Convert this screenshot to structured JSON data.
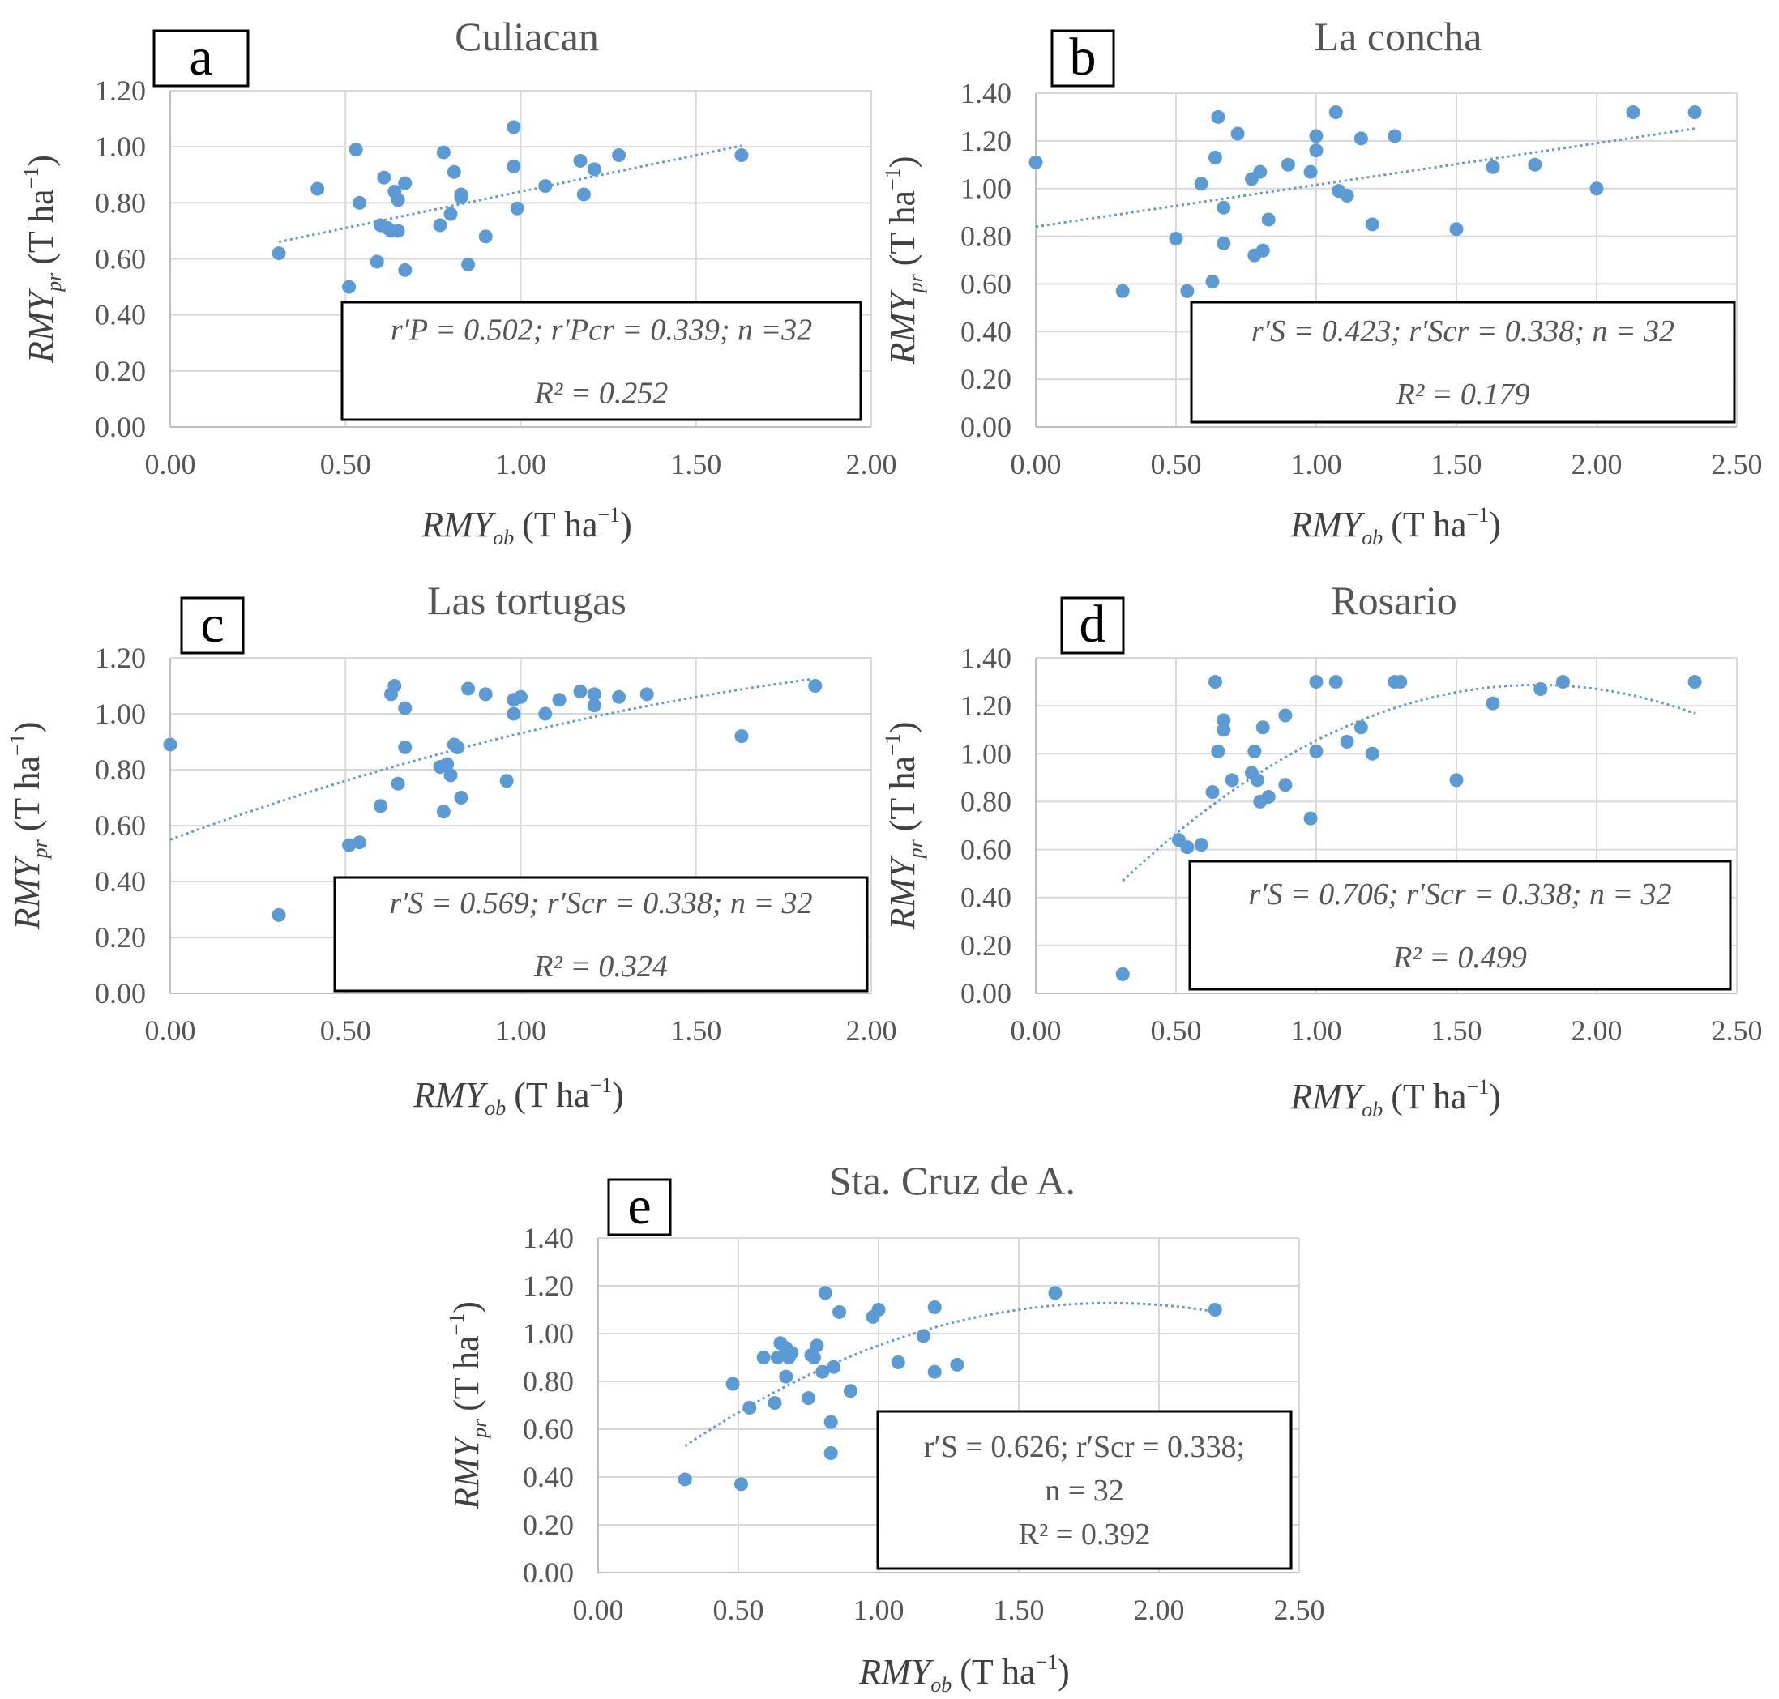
{
  "chart_data": [
    {
      "panel": "a",
      "type": "scatter",
      "title": "Culiacan",
      "xlabel": {
        "base": "RMY",
        "sub": "ob",
        "unit": "(T ha",
        "sup": "−1",
        "close": ")"
      },
      "ylabel": {
        "base": "RMY",
        "sub": "pr",
        "unit": "(T ha",
        "sup": "−1",
        "close": ")"
      },
      "xlim": [
        0,
        2
      ],
      "ylim": [
        0,
        1.2
      ],
      "xstep": 0.5,
      "ystep": 0.2,
      "xticks": [
        "0.00",
        "0.50",
        "1.00",
        "1.50",
        "2.00"
      ],
      "yticks": [
        "0.00",
        "0.20",
        "0.40",
        "0.60",
        "0.80",
        "1.00",
        "1.20"
      ],
      "trend": {
        "kind": "linear",
        "coef": [
          0.58,
          0.26
        ],
        "from": 0.31,
        "to": 1.63
      },
      "stats_line1": "r′P = 0.502; r′Pcr = 0.339; n =32",
      "stats_line2": "R² = 0.252",
      "stats_line3": "",
      "points": [
        [
          0.31,
          0.62
        ],
        [
          0.42,
          0.85
        ],
        [
          0.51,
          0.5
        ],
        [
          0.53,
          0.99
        ],
        [
          0.54,
          0.8
        ],
        [
          0.59,
          0.59
        ],
        [
          0.6,
          0.72
        ],
        [
          0.61,
          0.89
        ],
        [
          0.62,
          0.71
        ],
        [
          0.63,
          0.7
        ],
        [
          0.64,
          0.84
        ],
        [
          0.65,
          0.81
        ],
        [
          0.65,
          0.7
        ],
        [
          0.67,
          0.87
        ],
        [
          0.67,
          0.56
        ],
        [
          0.77,
          0.72
        ],
        [
          0.78,
          0.98
        ],
        [
          0.8,
          0.76
        ],
        [
          0.81,
          0.91
        ],
        [
          0.83,
          0.83
        ],
        [
          0.85,
          0.58
        ],
        [
          0.9,
          0.68
        ],
        [
          0.98,
          0.93
        ],
        [
          0.98,
          1.07
        ],
        [
          0.99,
          0.78
        ],
        [
          1.07,
          0.86
        ],
        [
          1.17,
          0.95
        ],
        [
          1.18,
          0.83
        ],
        [
          1.21,
          0.92
        ],
        [
          1.28,
          0.97
        ],
        [
          1.63,
          0.97
        ],
        [
          0.83,
          0.82
        ]
      ]
    },
    {
      "panel": "b",
      "type": "scatter",
      "title": "La concha",
      "xlabel": {
        "base": "RMY",
        "sub": "ob",
        "unit": "(T ha",
        "sup": "−1",
        "close": ")"
      },
      "ylabel": {
        "base": "RMY",
        "sub": "pr",
        "unit": "(T ha",
        "sup": "−1",
        "close": ")"
      },
      "xlim": [
        0,
        2.5
      ],
      "ylim": [
        0,
        1.4
      ],
      "xstep": 0.5,
      "ystep": 0.2,
      "xticks": [
        "0.00",
        "0.50",
        "1.00",
        "1.50",
        "2.00",
        "2.50"
      ],
      "yticks": [
        "0.00",
        "0.20",
        "0.40",
        "0.60",
        "0.80",
        "1.00",
        "1.20",
        "1.40"
      ],
      "trend": {
        "kind": "linear",
        "coef": [
          0.84,
          0.175
        ],
        "from": 0.0,
        "to": 2.35
      },
      "stats_line1": "r′S = 0.423; r′Scr = 0.338; n = 32",
      "stats_line2": "R² = 0.179",
      "stats_line3": "",
      "points": [
        [
          0.0,
          1.11
        ],
        [
          0.31,
          0.57
        ],
        [
          0.5,
          0.79
        ],
        [
          0.54,
          0.57
        ],
        [
          0.59,
          1.02
        ],
        [
          0.63,
          0.61
        ],
        [
          0.64,
          1.13
        ],
        [
          0.65,
          1.3
        ],
        [
          0.67,
          0.92
        ],
        [
          0.67,
          0.77
        ],
        [
          0.72,
          1.23
        ],
        [
          0.77,
          1.04
        ],
        [
          0.78,
          0.72
        ],
        [
          0.8,
          1.07
        ],
        [
          0.81,
          0.74
        ],
        [
          0.83,
          0.87
        ],
        [
          0.9,
          1.1
        ],
        [
          0.98,
          1.07
        ],
        [
          1.0,
          1.16
        ],
        [
          1.0,
          1.22
        ],
        [
          1.07,
          1.32
        ],
        [
          1.08,
          0.99
        ],
        [
          1.11,
          0.97
        ],
        [
          1.16,
          1.21
        ],
        [
          1.2,
          0.85
        ],
        [
          1.28,
          1.22
        ],
        [
          1.5,
          0.83
        ],
        [
          1.63,
          1.09
        ],
        [
          1.78,
          1.1
        ],
        [
          2.0,
          1.0
        ],
        [
          2.13,
          1.32
        ],
        [
          2.35,
          1.32
        ]
      ]
    },
    {
      "panel": "c",
      "type": "scatter",
      "title": "Las tortugas",
      "xlabel": {
        "base": "RMY",
        "sub": "ob",
        "unit": "(T ha",
        "sup": "−1",
        "close": ")"
      },
      "ylabel": {
        "base": "RMY",
        "sub": "pr",
        "unit": "(T ha",
        "sup": "−1",
        "close": ")"
      },
      "xlim": [
        0,
        2
      ],
      "ylim": [
        0,
        1.2
      ],
      "xstep": 0.5,
      "ystep": 0.2,
      "xticks": [
        "0.00",
        "0.50",
        "1.00",
        "1.50",
        "2.00"
      ],
      "yticks": [
        "0.00",
        "0.20",
        "0.40",
        "0.60",
        "0.80",
        "1.00",
        "1.20"
      ],
      "trend": {
        "kind": "poly2",
        "coef": [
          0.55,
          0.46,
          -0.08
        ],
        "from": 0.0,
        "to": 1.83
      },
      "stats_line1": "r′S = 0.569; r′Scr = 0.338; n = 32",
      "stats_line2": "R² = 0.324",
      "stats_line3": "",
      "points": [
        [
          0.0,
          0.89
        ],
        [
          0.31,
          0.28
        ],
        [
          0.51,
          0.53
        ],
        [
          0.54,
          0.54
        ],
        [
          0.6,
          0.67
        ],
        [
          0.63,
          1.07
        ],
        [
          0.64,
          1.1
        ],
        [
          0.65,
          0.75
        ],
        [
          0.67,
          1.02
        ],
        [
          0.67,
          0.88
        ],
        [
          0.77,
          0.81
        ],
        [
          0.78,
          0.65
        ],
        [
          0.79,
          0.82
        ],
        [
          0.8,
          0.78
        ],
        [
          0.81,
          0.89
        ],
        [
          0.83,
          0.7
        ],
        [
          0.85,
          1.09
        ],
        [
          0.9,
          1.07
        ],
        [
          0.96,
          0.76
        ],
        [
          0.98,
          1.05
        ],
        [
          0.98,
          1.0
        ],
        [
          1.0,
          1.06
        ],
        [
          1.07,
          1.0
        ],
        [
          1.11,
          1.05
        ],
        [
          1.17,
          1.08
        ],
        [
          1.21,
          1.07
        ],
        [
          1.21,
          1.03
        ],
        [
          1.28,
          1.06
        ],
        [
          1.36,
          1.07
        ],
        [
          1.63,
          0.92
        ],
        [
          1.84,
          1.1
        ],
        [
          0.82,
          0.88
        ]
      ]
    },
    {
      "panel": "d",
      "type": "scatter",
      "title": "Rosario",
      "xlabel": {
        "base": "RMY",
        "sub": "ob",
        "unit": "(T ha",
        "sup": "−1",
        "close": ")"
      },
      "ylabel": {
        "base": "RMY",
        "sub": "pr",
        "unit": "(T ha",
        "sup": "−1",
        "close": ")"
      },
      "xlim": [
        0,
        2.5
      ],
      "ylim": [
        0,
        1.4
      ],
      "xstep": 0.5,
      "ystep": 0.2,
      "xticks": [
        "0.00",
        "0.50",
        "1.00",
        "1.50",
        "2.00",
        "2.50"
      ],
      "yticks": [
        "0.00",
        "0.20",
        "0.40",
        "0.60",
        "0.80",
        "1.00",
        "1.20",
        "1.40"
      ],
      "trend": {
        "kind": "poly2",
        "coef": [
          0.09,
          1.34,
          -0.375
        ],
        "from": 0.31,
        "to": 2.35
      },
      "stats_line1": "r′S = 0.706; r′Scr = 0.338; n = 32",
      "stats_line2": "R² = 0.499",
      "stats_line3": "",
      "points": [
        [
          0.31,
          0.08
        ],
        [
          0.51,
          0.64
        ],
        [
          0.54,
          0.61
        ],
        [
          0.59,
          0.62
        ],
        [
          0.63,
          0.84
        ],
        [
          0.64,
          1.3
        ],
        [
          0.65,
          1.01
        ],
        [
          0.67,
          1.14
        ],
        [
          0.67,
          1.1
        ],
        [
          0.7,
          0.89
        ],
        [
          0.77,
          0.92
        ],
        [
          0.78,
          1.01
        ],
        [
          0.79,
          0.89
        ],
        [
          0.8,
          0.8
        ],
        [
          0.81,
          1.11
        ],
        [
          0.83,
          0.82
        ],
        [
          0.89,
          1.16
        ],
        [
          0.89,
          0.87
        ],
        [
          0.98,
          0.73
        ],
        [
          1.0,
          1.3
        ],
        [
          1.0,
          1.01
        ],
        [
          1.07,
          1.3
        ],
        [
          1.11,
          1.05
        ],
        [
          1.16,
          1.11
        ],
        [
          1.2,
          1.0
        ],
        [
          1.28,
          1.3
        ],
        [
          1.3,
          1.3
        ],
        [
          1.5,
          0.89
        ],
        [
          1.63,
          1.21
        ],
        [
          1.8,
          1.27
        ],
        [
          1.88,
          1.3
        ],
        [
          2.35,
          1.3
        ]
      ]
    },
    {
      "panel": "e",
      "type": "scatter",
      "title": "Sta. Cruz de A.",
      "xlabel": {
        "base": "RMY",
        "sub": "ob",
        "unit": "(T ha",
        "sup": "−1",
        "close": ")"
      },
      "ylabel": {
        "base": "RMY",
        "sub": "pr",
        "unit": "(T ha",
        "sup": "−1",
        "close": ")"
      },
      "xlim": [
        0,
        2.5
      ],
      "ylim": [
        0,
        1.4
      ],
      "xstep": 0.5,
      "ystep": 0.2,
      "xticks": [
        "0.00",
        "0.50",
        "1.00",
        "1.50",
        "2.00",
        "2.50"
      ],
      "yticks": [
        "0.00",
        "0.20",
        "0.40",
        "0.60",
        "0.80",
        "1.00",
        "1.20",
        "1.40"
      ],
      "trend": {
        "kind": "poly2",
        "coef": [
          0.26,
          0.95,
          -0.26
        ],
        "from": 0.31,
        "to": 2.2
      },
      "stats_line1": "r′S = 0.626; r′Scr = 0.338;",
      "stats_line2": "n = 32",
      "stats_line3": "R² = 0.392",
      "points": [
        [
          0.31,
          0.39
        ],
        [
          0.48,
          0.79
        ],
        [
          0.51,
          0.37
        ],
        [
          0.54,
          0.69
        ],
        [
          0.59,
          0.9
        ],
        [
          0.63,
          0.71
        ],
        [
          0.64,
          0.9
        ],
        [
          0.65,
          0.96
        ],
        [
          0.67,
          0.94
        ],
        [
          0.67,
          0.82
        ],
        [
          0.68,
          0.9
        ],
        [
          0.75,
          0.73
        ],
        [
          0.77,
          0.9
        ],
        [
          0.78,
          0.95
        ],
        [
          0.8,
          0.84
        ],
        [
          0.81,
          1.17
        ],
        [
          0.83,
          0.63
        ],
        [
          0.83,
          0.5
        ],
        [
          0.84,
          0.86
        ],
        [
          0.86,
          1.09
        ],
        [
          0.9,
          0.76
        ],
        [
          0.98,
          1.07
        ],
        [
          1.0,
          1.1
        ],
        [
          1.07,
          0.88
        ],
        [
          1.16,
          0.99
        ],
        [
          1.2,
          0.84
        ],
        [
          1.2,
          1.11
        ],
        [
          1.28,
          0.87
        ],
        [
          1.63,
          1.17
        ],
        [
          2.2,
          1.1
        ],
        [
          0.69,
          0.92
        ],
        [
          0.76,
          0.91
        ]
      ]
    }
  ]
}
